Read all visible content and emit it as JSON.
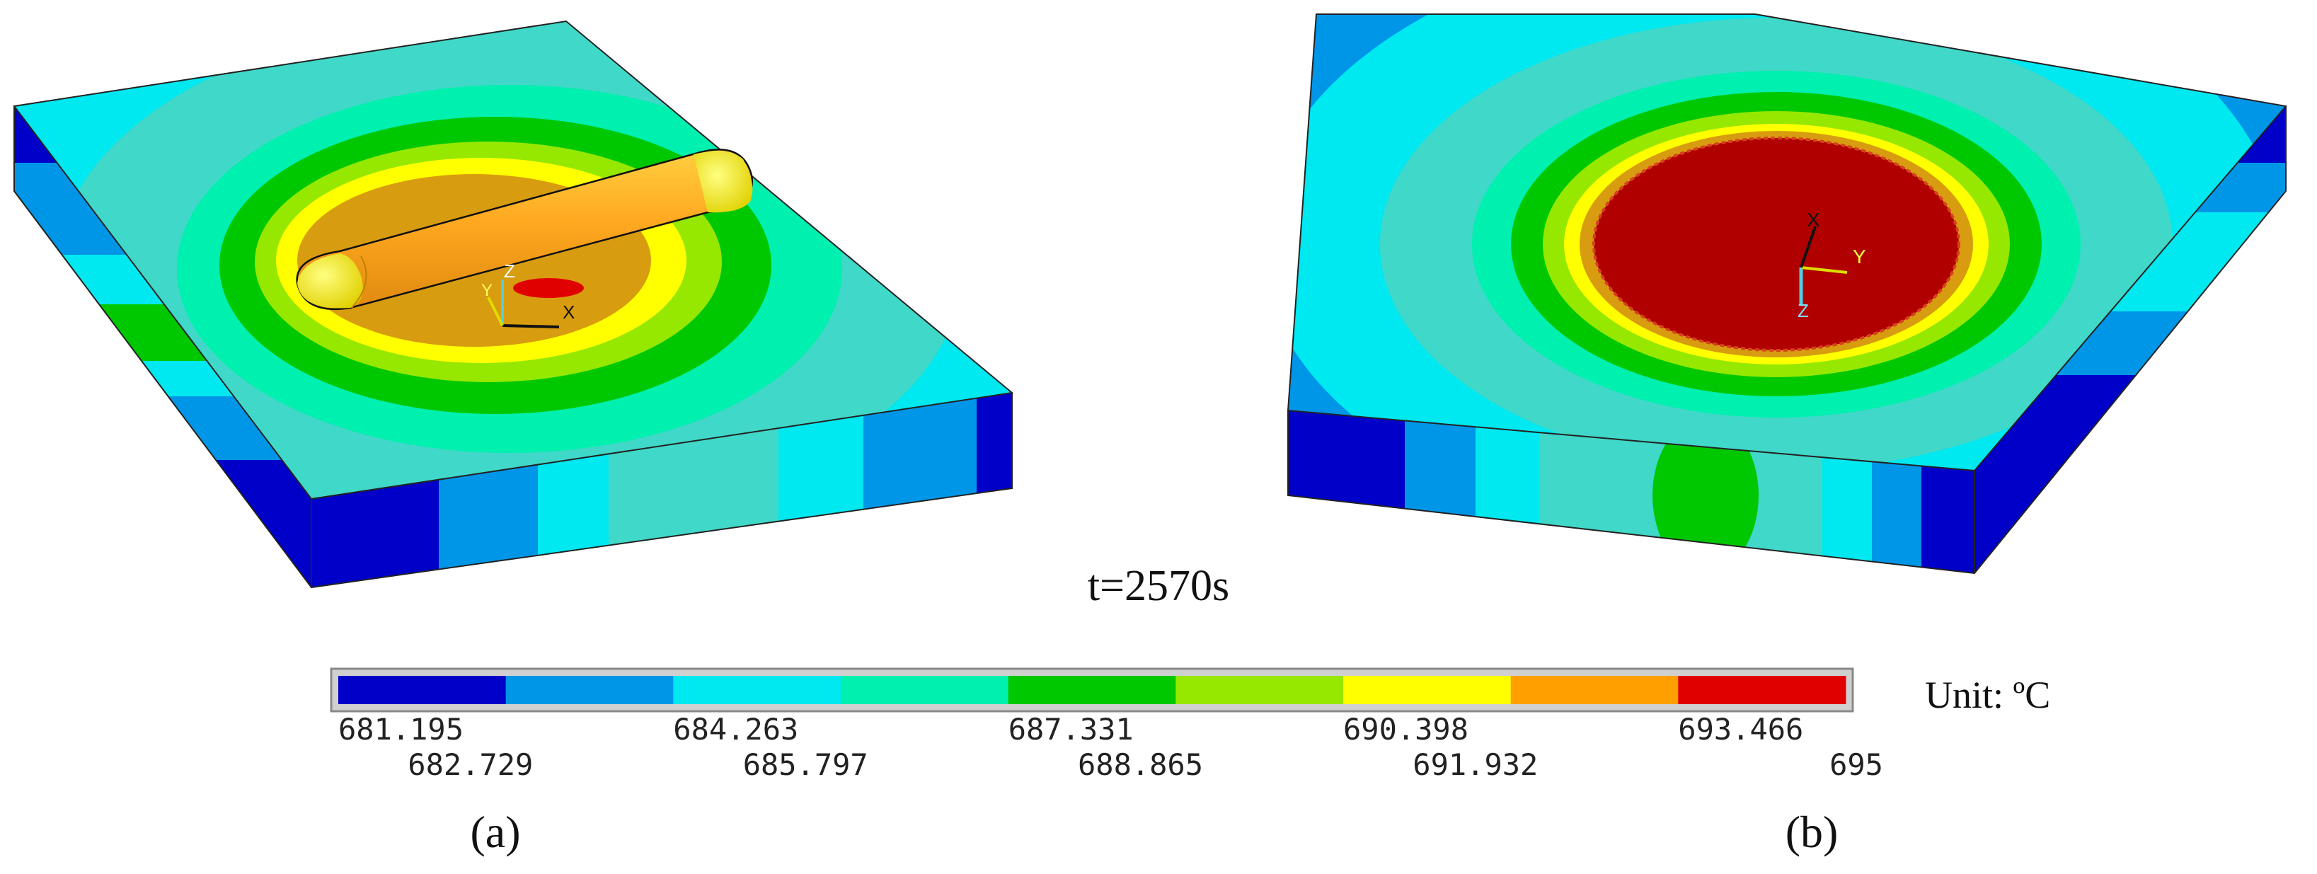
{
  "time_label": "t=2570s",
  "unit_label": "Unit: ºC",
  "panels": [
    {
      "id": "a",
      "label": "(a)",
      "view": "top-with-heater",
      "triad": {
        "x": "X",
        "y": "Y",
        "z": "Z"
      }
    },
    {
      "id": "b",
      "label": "(b)",
      "view": "bottom",
      "triad": {
        "x": "X",
        "y": "Y",
        "z": "Z"
      }
    }
  ],
  "colorbar": {
    "colors": [
      "#0000c8",
      "#0096e8",
      "#00e8f0",
      "#00f0b0",
      "#00c800",
      "#96e800",
      "#ffff00",
      "#ffa000",
      "#e00000"
    ],
    "ticks_top": [
      "681.195",
      "684.263",
      "687.331",
      "690.398",
      "693.466"
    ],
    "ticks_bottom": [
      "682.729",
      "685.797",
      "688.865",
      "691.932",
      "695"
    ]
  }
}
